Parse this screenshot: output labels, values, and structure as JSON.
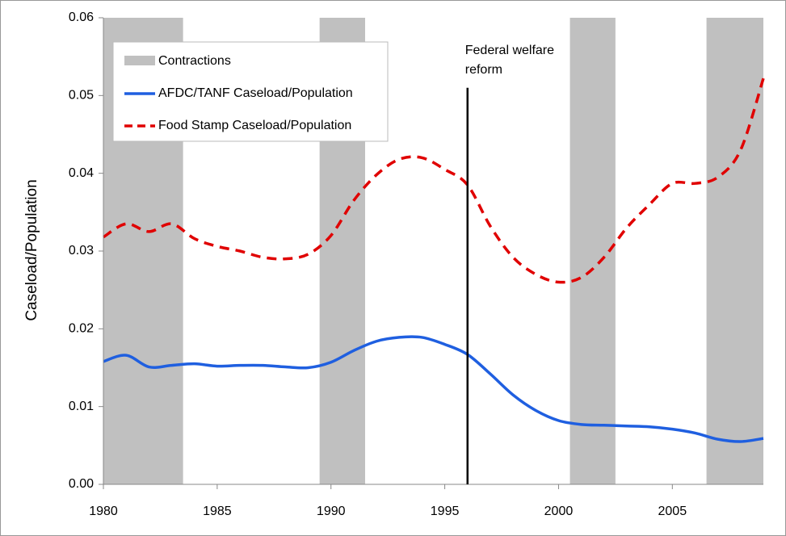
{
  "chart_data": {
    "type": "line",
    "y_axis_label": "Caseload/Population",
    "xlim": [
      1980,
      2009
    ],
    "xticks": [
      1980,
      1985,
      1990,
      1995,
      2000,
      2005
    ],
    "ylim": [
      0,
      0.06
    ],
    "yticks": [
      {
        "value": 0,
        "label": "0.00"
      },
      0.01,
      0.02,
      0.03,
      0.04,
      0.05,
      0.06
    ],
    "x": [
      1980,
      1981,
      1982,
      1983,
      1984,
      1985,
      1986,
      1987,
      1988,
      1989,
      1990,
      1991,
      1992,
      1993,
      1994,
      1995,
      1996,
      1997,
      1998,
      1999,
      2000,
      2001,
      2002,
      2003,
      2004,
      2005,
      2006,
      2007,
      2008,
      2009
    ],
    "shaded": {
      "name": "Contractions",
      "color": "#c0c0c0",
      "periods": [
        [
          1980,
          1983.5
        ],
        [
          1989.5,
          1991.5
        ],
        [
          2000.5,
          2002.5
        ],
        [
          2006.5,
          2009
        ]
      ]
    },
    "series": [
      {
        "name": "AFDC/TANF Caseload/Population",
        "color": "#1f5fe0",
        "dashed": false,
        "values": [
          0.0158,
          0.0166,
          0.0151,
          0.0153,
          0.0155,
          0.0152,
          0.0153,
          0.0153,
          0.0151,
          0.015,
          0.0157,
          0.0172,
          0.0184,
          0.0189,
          0.0189,
          0.018,
          0.0167,
          0.0142,
          0.0115,
          0.0095,
          0.0082,
          0.0077,
          0.0076,
          0.0075,
          0.0074,
          0.0071,
          0.0066,
          0.0058,
          0.0055,
          0.0059
        ]
      },
      {
        "name": "Food Stamp Caseload/Population",
        "color": "#e00000",
        "dashed": true,
        "values": [
          0.0318,
          0.0335,
          0.0325,
          0.0335,
          0.0316,
          0.0306,
          0.03,
          0.0292,
          0.029,
          0.0296,
          0.032,
          0.0365,
          0.0398,
          0.0418,
          0.042,
          0.0405,
          0.0385,
          0.0332,
          0.0292,
          0.027,
          0.026,
          0.0266,
          0.0292,
          0.033,
          0.036,
          0.0387,
          0.0387,
          0.0395,
          0.043,
          0.0522
        ]
      }
    ],
    "reform_line": {
      "x": 1996,
      "top": 0.051,
      "label": [
        "Federal welfare",
        "reform"
      ]
    }
  }
}
